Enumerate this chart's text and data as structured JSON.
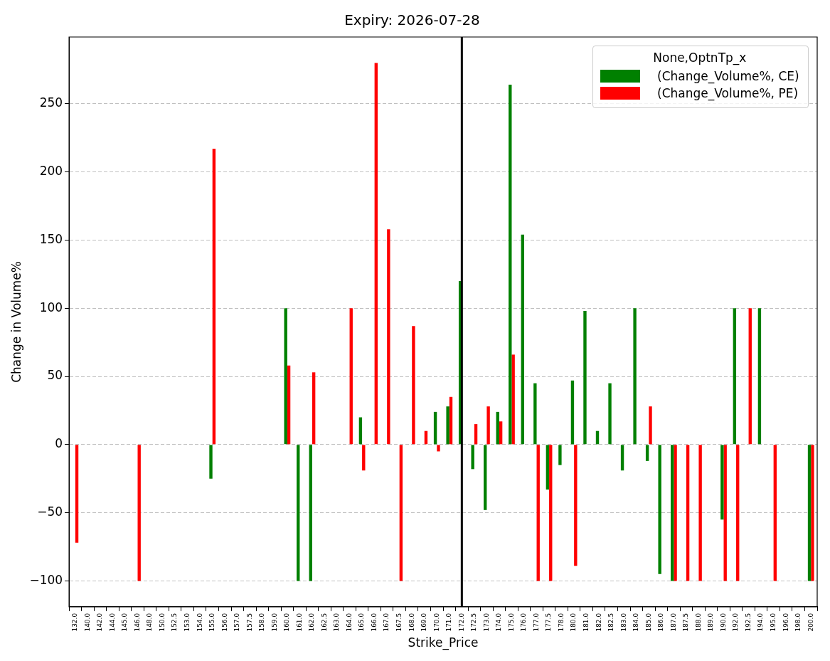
{
  "chart_data": {
    "type": "bar",
    "title": "Expiry: 2026-07-28",
    "xlabel": "Strike_Price",
    "ylabel": "Change in Volume%",
    "legend_title": "None,OptnTp_x",
    "categories": [
      "132.0",
      "140.0",
      "142.0",
      "144.0",
      "145.0",
      "146.0",
      "148.0",
      "150.0",
      "152.5",
      "153.0",
      "154.0",
      "155.0",
      "156.0",
      "157.0",
      "157.5",
      "158.0",
      "159.0",
      "160.0",
      "161.0",
      "162.0",
      "162.5",
      "163.0",
      "164.0",
      "165.0",
      "166.0",
      "167.0",
      "167.5",
      "168.0",
      "169.0",
      "170.0",
      "171.0",
      "172.0",
      "172.5",
      "173.0",
      "174.0",
      "175.0",
      "176.0",
      "177.0",
      "177.5",
      "178.0",
      "180.0",
      "181.0",
      "182.0",
      "182.5",
      "183.0",
      "184.0",
      "185.0",
      "186.0",
      "187.0",
      "187.5",
      "188.0",
      "189.0",
      "190.0",
      "192.0",
      "192.5",
      "194.0",
      "195.0",
      "196.0",
      "198.0",
      "200.0"
    ],
    "series": [
      {
        "name": "(Change_Volume%, CE)",
        "color": "#008000",
        "values": [
          null,
          null,
          null,
          null,
          null,
          null,
          null,
          null,
          null,
          null,
          null,
          -25,
          null,
          null,
          null,
          null,
          null,
          100,
          -100,
          -100,
          null,
          null,
          null,
          20,
          null,
          null,
          null,
          null,
          null,
          24,
          28,
          120,
          -18,
          -48,
          24,
          264,
          154,
          45,
          -33,
          -15,
          47,
          98,
          10,
          45,
          -19,
          100,
          -12,
          -95,
          -100,
          null,
          null,
          null,
          -55,
          100,
          null,
          100,
          null,
          null,
          null,
          -100
        ]
      },
      {
        "name": "(Change_Volume%, PE)",
        "color": "#ff0000",
        "values": [
          -72,
          null,
          null,
          null,
          null,
          -100,
          null,
          null,
          null,
          null,
          null,
          217,
          null,
          null,
          null,
          null,
          null,
          58,
          null,
          53,
          null,
          null,
          100,
          -19,
          280,
          158,
          -100,
          87,
          10,
          -5,
          35,
          null,
          15,
          28,
          17,
          66,
          null,
          -100,
          -100,
          null,
          -89,
          null,
          null,
          null,
          null,
          null,
          28,
          null,
          -100,
          -100,
          -100,
          null,
          -100,
          -100,
          100,
          null,
          -100,
          null,
          null,
          -100
        ]
      }
    ],
    "ylim": [
      -119,
      299
    ],
    "yticks": [
      {
        "value": -100,
        "label": "−100"
      },
      {
        "value": -50,
        "label": "−50"
      },
      0,
      50,
      100,
      150,
      200,
      250
    ],
    "ref_lines": [
      {
        "axis": "x",
        "value": "172.0",
        "color": "#000000"
      }
    ],
    "grid": "y",
    "legend": "top right"
  }
}
